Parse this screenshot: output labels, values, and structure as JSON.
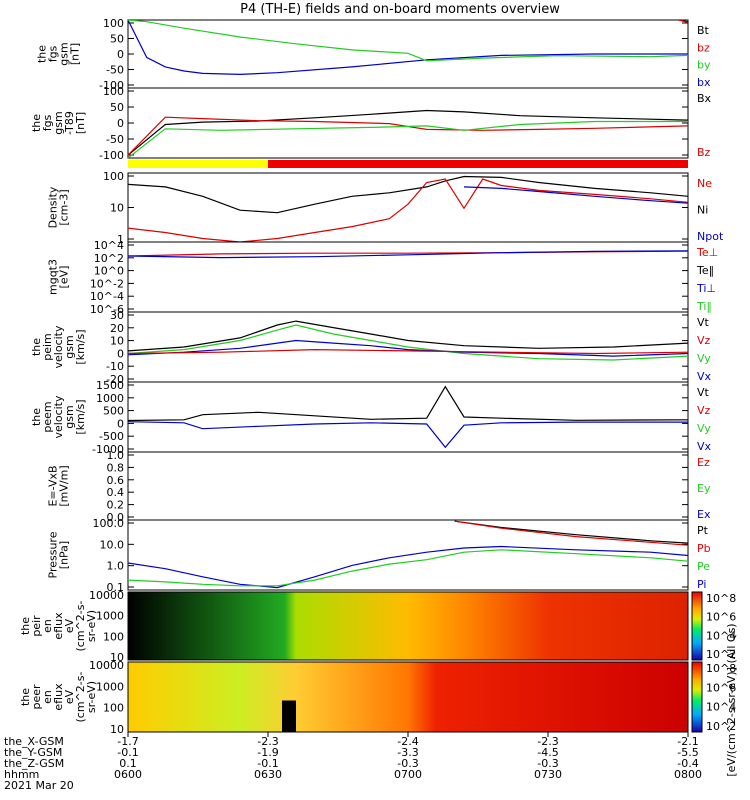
{
  "title": "P4 (TH-E) fields and on-board moments overview",
  "colors": {
    "black": "#000000",
    "red": "#dd0000",
    "green": "#22cc22",
    "blue": "#0000cc",
    "yellow": "#ffff00",
    "bar_red": "#ee0000"
  },
  "chart_data": [
    {
      "type": "line",
      "id": "fgs_gsm",
      "ylabel": [
        "the",
        "fgs",
        "gsm",
        "[nT]"
      ],
      "yticks": [
        "100",
        "50",
        "0",
        "-50",
        "-100"
      ],
      "ylim": [
        -100,
        100
      ],
      "legend": [
        {
          "name": "Bt",
          "color": "black"
        },
        {
          "name": "bz",
          "color": "red"
        },
        {
          "name": "by",
          "color": "green"
        },
        {
          "name": "bx",
          "color": "blue"
        }
      ],
      "series": [
        {
          "name": "bx",
          "color": "blue",
          "x": [
            0,
            2,
            4,
            6,
            8,
            12,
            16,
            24,
            32,
            40,
            50,
            56,
            60
          ],
          "y": [
            100,
            -10,
            -38,
            -50,
            -57,
            -60,
            -55,
            -38,
            -17,
            -4,
            0,
            0,
            0
          ]
        },
        {
          "name": "by",
          "color": "green",
          "x": [
            0,
            2,
            6,
            12,
            18,
            24,
            30,
            32,
            38,
            46,
            56,
            60
          ],
          "y": [
            100,
            95,
            76,
            50,
            30,
            12,
            2,
            -20,
            -12,
            -5,
            -8,
            -4
          ]
        },
        {
          "name": "Bt",
          "color": "black",
          "x": [
            59,
            60
          ],
          "y": [
            100,
            95
          ]
        },
        {
          "name": "bz",
          "color": "red",
          "x": [
            59,
            60
          ],
          "y": [
            100,
            93
          ]
        }
      ]
    },
    {
      "type": "line",
      "id": "fgs_gsm_t89",
      "ylabel": [
        "the",
        "fgs",
        "gsm",
        "-T89",
        "[nT]"
      ],
      "yticks": [
        "100",
        "50",
        "0",
        "-50",
        "-100"
      ],
      "ylim": [
        -120,
        120
      ],
      "legend": [
        {
          "name": "Bx",
          "color": "black"
        },
        {
          "name": "Bz",
          "color": "red"
        }
      ],
      "series": [
        {
          "name": "Bx",
          "color": "black",
          "x": [
            0,
            4,
            8,
            14,
            20,
            26,
            32,
            36,
            42,
            50,
            60
          ],
          "y": [
            -110,
            -5,
            3,
            7,
            18,
            30,
            43,
            38,
            25,
            18,
            10
          ]
        },
        {
          "name": "Bz",
          "color": "red",
          "x": [
            0,
            4,
            8,
            14,
            20,
            28,
            32,
            38,
            44,
            50,
            60
          ],
          "y": [
            -110,
            20,
            15,
            8,
            5,
            -2,
            -22,
            -25,
            -22,
            -18,
            -10
          ]
        },
        {
          "name": "green",
          "color": "green",
          "x": [
            0,
            4,
            10,
            18,
            26,
            32,
            36,
            42,
            50,
            60
          ],
          "y": [
            -120,
            -20,
            -25,
            -20,
            -15,
            -10,
            -25,
            -5,
            5,
            5
          ]
        }
      ]
    },
    {
      "type": "bar",
      "id": "region_bar",
      "segments": [
        {
          "from": 0,
          "to": 15,
          "color": "yellow"
        },
        {
          "from": 15,
          "to": 60,
          "color": "bar_red"
        }
      ]
    },
    {
      "type": "line",
      "id": "density",
      "ylabel": [
        "Density",
        "[cm-3]"
      ],
      "yticks": [
        "100",
        "10",
        "1"
      ],
      "ylim": [
        0.1,
        300
      ],
      "log": true,
      "legend": [
        {
          "name": "Ne",
          "color": "red"
        },
        {
          "name": "Ni",
          "color": "black"
        },
        {
          "name": "Npot",
          "color": "blue"
        }
      ],
      "series": [
        {
          "name": "Ni",
          "color": "black",
          "x": [
            0,
            4,
            8,
            12,
            16,
            20,
            24,
            28,
            32,
            34,
            36,
            40,
            44,
            50,
            56,
            60
          ],
          "y": [
            80,
            60,
            20,
            4,
            3,
            8,
            20,
            30,
            60,
            120,
            200,
            180,
            100,
            50,
            30,
            20
          ]
        },
        {
          "name": "Ne",
          "color": "red",
          "x": [
            0,
            4,
            8,
            12,
            16,
            20,
            24,
            28,
            30,
            32,
            34,
            36,
            38,
            40,
            44,
            50,
            56,
            60
          ],
          "y": [
            0.5,
            0.3,
            0.15,
            0.1,
            0.15,
            0.3,
            0.6,
            1.5,
            8,
            100,
            150,
            5,
            150,
            70,
            40,
            25,
            15,
            10
          ]
        },
        {
          "name": "Npot",
          "color": "blue",
          "x": [
            36,
            40,
            44,
            50,
            56,
            60
          ],
          "y": [
            60,
            50,
            35,
            20,
            12,
            9
          ]
        }
      ]
    },
    {
      "type": "line",
      "id": "mgt3",
      "ylabel": [
        "mgqt3",
        "[eV]"
      ],
      "yticks": [
        "10^4",
        "10^2",
        "10^0",
        "10^-2",
        "10^-4",
        "10^-6"
      ],
      "log": true,
      "legend": [
        {
          "name": "Te⊥",
          "color": "red"
        },
        {
          "name": "Te‖",
          "color": "black"
        },
        {
          "name": "Ti⊥",
          "color": "blue"
        },
        {
          "name": "Ti‖",
          "color": "green"
        }
      ],
      "series": [
        {
          "name": "Te⊥",
          "color": "red",
          "x": [
            0,
            10,
            20,
            30,
            40,
            50,
            60
          ],
          "y": [
            100,
            200,
            250,
            250,
            300,
            400,
            500
          ]
        },
        {
          "name": "Ti⊥",
          "color": "blue",
          "x": [
            0,
            10,
            20,
            30,
            40,
            50,
            60
          ],
          "y": [
            100,
            60,
            80,
            150,
            300,
            450,
            550
          ]
        }
      ]
    },
    {
      "type": "line",
      "id": "vi",
      "ylabel": [
        "the",
        "peim",
        "velocity",
        "gsm",
        "[km/s]"
      ],
      "yticks": [
        "30",
        "20",
        "10",
        "0",
        "-10",
        "-20"
      ],
      "ylim": [
        -22,
        32
      ],
      "legend": [
        {
          "name": "Vt",
          "color": "black"
        },
        {
          "name": "Vz",
          "color": "red"
        },
        {
          "name": "Vy",
          "color": "green"
        },
        {
          "name": "Vx",
          "color": "blue"
        }
      ],
      "series": [
        {
          "name": "Vt",
          "color": "black",
          "x": [
            0,
            6,
            12,
            16,
            18,
            22,
            26,
            30,
            36,
            44,
            52,
            60
          ],
          "y": [
            2,
            5,
            12,
            22,
            25,
            20,
            15,
            10,
            6,
            4,
            5,
            8
          ]
        },
        {
          "name": "Vy",
          "color": "green",
          "x": [
            0,
            6,
            12,
            16,
            18,
            22,
            26,
            30,
            36,
            44,
            52,
            60
          ],
          "y": [
            0,
            3,
            10,
            18,
            22,
            15,
            10,
            5,
            0,
            -4,
            -5,
            -2
          ]
        },
        {
          "name": "Vx",
          "color": "blue",
          "x": [
            0,
            6,
            12,
            16,
            18,
            22,
            26,
            30,
            36,
            44,
            52,
            60
          ],
          "y": [
            -1,
            1,
            4,
            8,
            10,
            8,
            6,
            3,
            1,
            0,
            -2,
            0
          ]
        },
        {
          "name": "Vz",
          "color": "red",
          "x": [
            0,
            10,
            20,
            30,
            40,
            50,
            60
          ],
          "y": [
            0,
            1,
            3,
            2,
            1,
            0,
            1
          ]
        }
      ]
    },
    {
      "type": "line",
      "id": "ve",
      "ylabel": [
        "the",
        "peem",
        "velocity",
        "gsm",
        "[km/s]"
      ],
      "yticks": [
        "1500",
        "1000",
        "500",
        "0",
        "-500",
        "-1000"
      ],
      "ylim": [
        -1300,
        1700
      ],
      "legend": [
        {
          "name": "Vt",
          "color": "black"
        },
        {
          "name": "Vz",
          "color": "red"
        },
        {
          "name": "Vy",
          "color": "green"
        },
        {
          "name": "Vx",
          "color": "blue"
        }
      ],
      "series": [
        {
          "name": "Vt",
          "color": "black",
          "x": [
            0,
            6,
            8,
            14,
            20,
            26,
            32,
            34,
            36,
            40,
            48,
            60
          ],
          "y": [
            50,
            80,
            300,
            400,
            250,
            100,
            150,
            1500,
            200,
            150,
            60,
            80
          ]
        },
        {
          "name": "Vx",
          "color": "blue",
          "x": [
            0,
            6,
            8,
            14,
            20,
            26,
            32,
            34,
            36,
            40,
            48,
            60
          ],
          "y": [
            0,
            -50,
            -300,
            -200,
            -100,
            -50,
            -100,
            -1100,
            -150,
            -50,
            -20,
            -20
          ]
        }
      ]
    },
    {
      "type": "line",
      "id": "e_vxb",
      "ylabel": [
        "E=-VxB",
        "[mV/m]"
      ],
      "yticks": [
        "1.0",
        "0.8",
        "0.6",
        "0.4",
        "0.2",
        "0.0"
      ],
      "ylim": [
        0,
        1
      ],
      "legend": [
        {
          "name": "Ez",
          "color": "red"
        },
        {
          "name": "Ey",
          "color": "green"
        },
        {
          "name": "Ex",
          "color": "blue"
        }
      ],
      "series": []
    },
    {
      "type": "line",
      "id": "pressure",
      "ylabel": [
        "Pressure",
        "[nPa]"
      ],
      "yticks": [
        "100.0",
        "10.0",
        "1.0",
        "0.1"
      ],
      "ylim": [
        0.03,
        150
      ],
      "log": true,
      "legend": [
        {
          "name": "Pt",
          "color": "black"
        },
        {
          "name": "Pb",
          "color": "red"
        },
        {
          "name": "Pe",
          "color": "green"
        },
        {
          "name": "Pi",
          "color": "blue"
        }
      ],
      "series": [
        {
          "name": "Pi",
          "color": "blue",
          "x": [
            0,
            4,
            8,
            12,
            16,
            20,
            24,
            28,
            32,
            36,
            40,
            48,
            56,
            60
          ],
          "y": [
            0.8,
            0.4,
            0.15,
            0.06,
            0.04,
            0.15,
            0.6,
            1.5,
            3,
            5,
            6,
            4,
            3,
            2
          ]
        },
        {
          "name": "Pe",
          "color": "green",
          "x": [
            0,
            4,
            8,
            12,
            16,
            20,
            24,
            28,
            32,
            36,
            40,
            48,
            56,
            60
          ],
          "y": [
            0.1,
            0.08,
            0.06,
            0.05,
            0.05,
            0.1,
            0.3,
            0.7,
            1.2,
            3,
            4,
            2.5,
            1.5,
            1
          ]
        },
        {
          "name": "Pt",
          "color": "black",
          "x": [
            35,
            40,
            48,
            56,
            60
          ],
          "y": [
            130,
            60,
            25,
            12,
            9
          ]
        },
        {
          "name": "Pb",
          "color": "red",
          "x": [
            35,
            40,
            48,
            56,
            60
          ],
          "y": [
            130,
            55,
            20,
            10,
            7
          ]
        }
      ]
    },
    {
      "type": "heatmap",
      "id": "peir",
      "ylabel": [
        "the",
        "peir",
        "en",
        "eflux",
        "eV",
        "(cm^2-s-",
        "sr-eV)"
      ],
      "yticks": [
        "10000",
        "1000",
        "100",
        "10"
      ]
    },
    {
      "type": "heatmap",
      "id": "peer",
      "ylabel": [
        "the",
        "peer",
        "en",
        "eflux",
        "eV",
        "(cm^2-s-",
        "sr-eV)"
      ],
      "yticks": [
        "10000",
        "1000",
        "100",
        "10"
      ]
    }
  ],
  "colorbar": {
    "ticks": [
      "10^8",
      "10^6",
      "10^4",
      "10^2"
    ],
    "label_upper": "[eV/(cm^2-s-sr-eV)] (All Qs)",
    "label_lower": "[eV/(cm^2-s-sr-eV)] (All Qs)"
  },
  "footer": {
    "rows": [
      {
        "label": "the_X-GSM",
        "values": [
          "-1.7",
          "-2.3",
          "-2.4",
          "-2.3",
          "-2.1"
        ]
      },
      {
        "label": "the_Y-GSM",
        "values": [
          "-0.1",
          "-1.9",
          "-3.3",
          "-4.5",
          "-5.5"
        ]
      },
      {
        "label": "the_Z-GSM",
        "values": [
          "0.1",
          "-0.1",
          "-0.3",
          "-0.3",
          "-0.4"
        ]
      },
      {
        "label": "hhmm",
        "values": [
          "0600",
          "0630",
          "0700",
          "0730",
          "0800"
        ]
      }
    ],
    "date": "2021 Mar 20"
  }
}
